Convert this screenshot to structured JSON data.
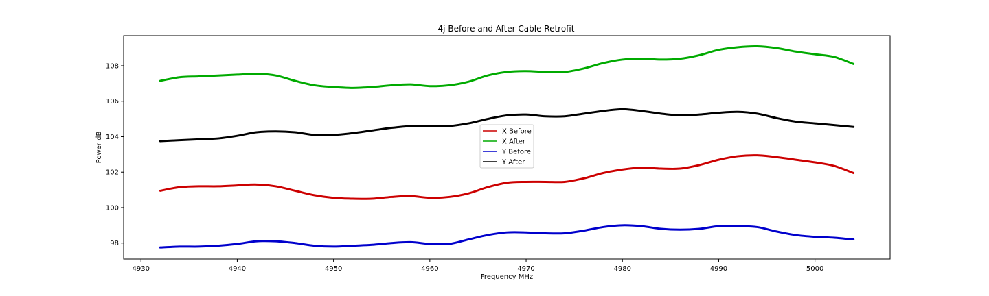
{
  "chart_data": {
    "type": "line",
    "title": "4j Before and After Cable Retrofit",
    "xlabel": "Frequency MHz",
    "ylabel": "Power dB",
    "xlim": [
      4928.2,
      5007.8
    ],
    "ylim": [
      97.1,
      109.7
    ],
    "xticks": [
      4930,
      4940,
      4950,
      4960,
      4970,
      4980,
      4990,
      5000
    ],
    "yticks": [
      98,
      100,
      102,
      104,
      106,
      108
    ],
    "grid": false,
    "legend_position": "center",
    "series": [
      {
        "name": "X Before",
        "color": "#cc0000",
        "x": [
          4932,
          4934,
          4936,
          4938,
          4940,
          4942,
          4944,
          4946,
          4948,
          4950,
          4952,
          4954,
          4956,
          4958,
          4960,
          4962,
          4964,
          4966,
          4968,
          4970,
          4972,
          4974,
          4976,
          4978,
          4980,
          4982,
          4984,
          4986,
          4988,
          4990,
          4992,
          4994,
          4996,
          4998,
          5000,
          5002,
          5004
        ],
        "y": [
          100.95,
          101.15,
          101.2,
          101.2,
          101.25,
          101.3,
          101.2,
          100.95,
          100.7,
          100.55,
          100.5,
          100.5,
          100.6,
          100.65,
          100.55,
          100.6,
          100.8,
          101.15,
          101.4,
          101.45,
          101.45,
          101.45,
          101.65,
          101.95,
          102.15,
          102.25,
          102.2,
          102.2,
          102.4,
          102.7,
          102.9,
          102.95,
          102.85,
          102.7,
          102.55,
          102.35,
          101.95
        ]
      },
      {
        "name": "X After",
        "color": "#00aa00",
        "x": [
          4932,
          4934,
          4936,
          4938,
          4940,
          4942,
          4944,
          4946,
          4948,
          4950,
          4952,
          4954,
          4956,
          4958,
          4960,
          4962,
          4964,
          4966,
          4968,
          4970,
          4972,
          4974,
          4976,
          4978,
          4980,
          4982,
          4984,
          4986,
          4988,
          4990,
          4992,
          4994,
          4996,
          4998,
          5000,
          5002,
          5004
        ],
        "y": [
          107.15,
          107.35,
          107.4,
          107.45,
          107.5,
          107.55,
          107.45,
          107.15,
          106.9,
          106.8,
          106.75,
          106.8,
          106.9,
          106.95,
          106.85,
          106.9,
          107.1,
          107.45,
          107.65,
          107.7,
          107.65,
          107.65,
          107.85,
          108.15,
          108.35,
          108.4,
          108.35,
          108.4,
          108.6,
          108.9,
          109.05,
          109.1,
          109.0,
          108.8,
          108.65,
          108.5,
          108.1
        ]
      },
      {
        "name": "Y Before",
        "color": "#0000cc",
        "x": [
          4932,
          4934,
          4936,
          4938,
          4940,
          4942,
          4944,
          4946,
          4948,
          4950,
          4952,
          4954,
          4956,
          4958,
          4960,
          4962,
          4964,
          4966,
          4968,
          4970,
          4972,
          4974,
          4976,
          4978,
          4980,
          4982,
          4984,
          4986,
          4988,
          4990,
          4992,
          4994,
          4996,
          4998,
          5000,
          5002,
          5004
        ],
        "y": [
          97.75,
          97.8,
          97.8,
          97.85,
          97.95,
          98.1,
          98.1,
          98.0,
          97.85,
          97.8,
          97.85,
          97.9,
          98.0,
          98.05,
          97.95,
          97.95,
          98.2,
          98.45,
          98.6,
          98.6,
          98.55,
          98.55,
          98.7,
          98.9,
          99.0,
          98.95,
          98.8,
          98.75,
          98.8,
          98.95,
          98.95,
          98.9,
          98.65,
          98.45,
          98.35,
          98.3,
          98.2
        ]
      },
      {
        "name": "Y After",
        "color": "#000000",
        "x": [
          4932,
          4934,
          4936,
          4938,
          4940,
          4942,
          4944,
          4946,
          4948,
          4950,
          4952,
          4954,
          4956,
          4958,
          4960,
          4962,
          4964,
          4966,
          4968,
          4970,
          4972,
          4974,
          4976,
          4978,
          4980,
          4982,
          4984,
          4986,
          4988,
          4990,
          4992,
          4994,
          4996,
          4998,
          5000,
          5002,
          5004
        ],
        "y": [
          103.75,
          103.8,
          103.85,
          103.9,
          104.05,
          104.25,
          104.3,
          104.25,
          104.1,
          104.1,
          104.2,
          104.35,
          104.5,
          104.6,
          104.6,
          104.6,
          104.75,
          105.0,
          105.2,
          105.25,
          105.15,
          105.15,
          105.3,
          105.45,
          105.55,
          105.45,
          105.3,
          105.2,
          105.25,
          105.35,
          105.4,
          105.3,
          105.05,
          104.85,
          104.75,
          104.65,
          104.55
        ]
      }
    ]
  }
}
